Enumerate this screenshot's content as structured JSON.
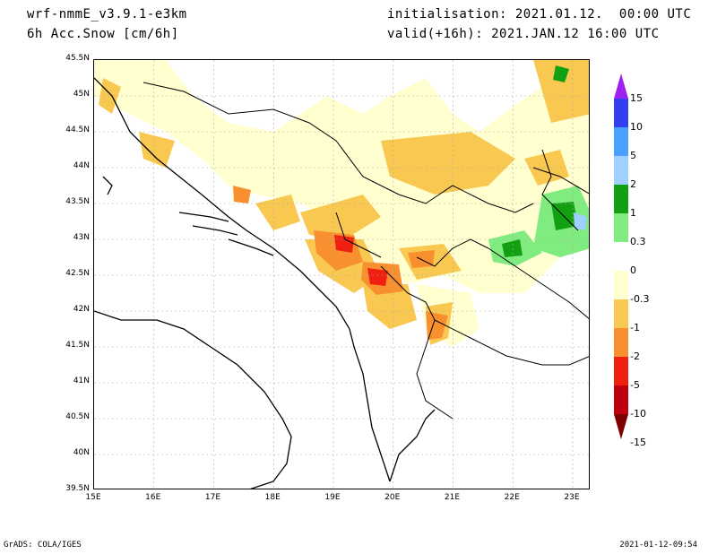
{
  "header": {
    "model": "wrf-nmmE_v3.9.1-e3km",
    "field": "6h Acc.Snow [cm/6h]",
    "init": "initialisation: 2021.01.12.  00:00 UTC",
    "valid": "valid(+16h): 2021.JAN.12 16:00 UTC"
  },
  "map": {
    "lat_labels": [
      "45.5N",
      "45N",
      "44.5N",
      "44N",
      "43.5N",
      "43N",
      "42.5N",
      "42N",
      "41.5N",
      "41N",
      "40.5N",
      "40N",
      "39.5N"
    ],
    "lon_labels": [
      "15E",
      "16E",
      "17E",
      "18E",
      "19E",
      "20E",
      "21E",
      "22E",
      "23E"
    ],
    "lat_range": [
      39.5,
      45.5
    ],
    "lon_range": [
      15.0,
      23.3
    ],
    "grid": true,
    "coast_color": "#000000"
  },
  "colorbar": {
    "labels": [
      "15",
      "10",
      "5",
      "2",
      "1",
      "0.3",
      "0",
      "-0.3",
      "-1",
      "-2",
      "-5",
      "-10",
      "-15"
    ],
    "colors": [
      "#a020f0",
      "#3040f0",
      "#4aa0ff",
      "#a0d0ff",
      "#12a012",
      "#80ec80",
      "#ffffff",
      "#ffffd0",
      "#f8c850",
      "#f89030",
      "#f02010",
      "#c00010",
      "#800000"
    ]
  },
  "footer": {
    "left": "GrADS: COLA/IGES",
    "right": "2021-01-12-09:54"
  }
}
